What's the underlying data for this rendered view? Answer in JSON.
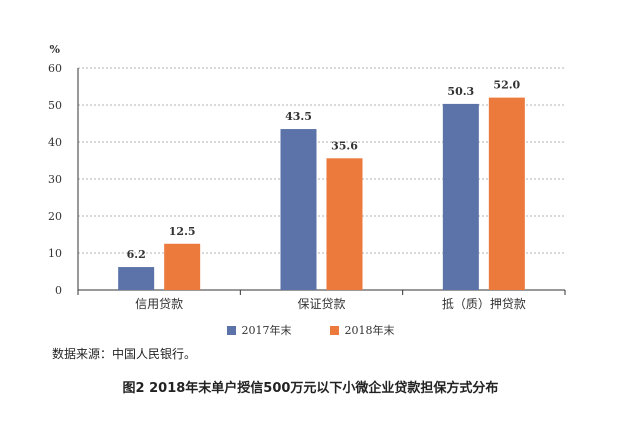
{
  "chart_data": {
    "type": "bar",
    "unit_label": "%",
    "categories": [
      "信用贷款",
      "保证贷款",
      "抵（质）押贷款"
    ],
    "series": [
      {
        "name": "2017年末",
        "values": [
          6.2,
          43.5,
          50.3
        ],
        "color": "#5b73a8"
      },
      {
        "name": "2018年末",
        "values": [
          12.5,
          35.6,
          52.0
        ],
        "color": "#ec7a3d"
      }
    ],
    "ylim": [
      0,
      60
    ],
    "yticks": [
      "0",
      "10",
      "20",
      "30",
      "40",
      "50",
      "60"
    ],
    "grid": true,
    "legend_position": "bottom"
  },
  "source_note": "数据来源：中国人民银行。",
  "caption": "图2   2018年末单户授信500万元以下小微企业贷款担保方式分布"
}
